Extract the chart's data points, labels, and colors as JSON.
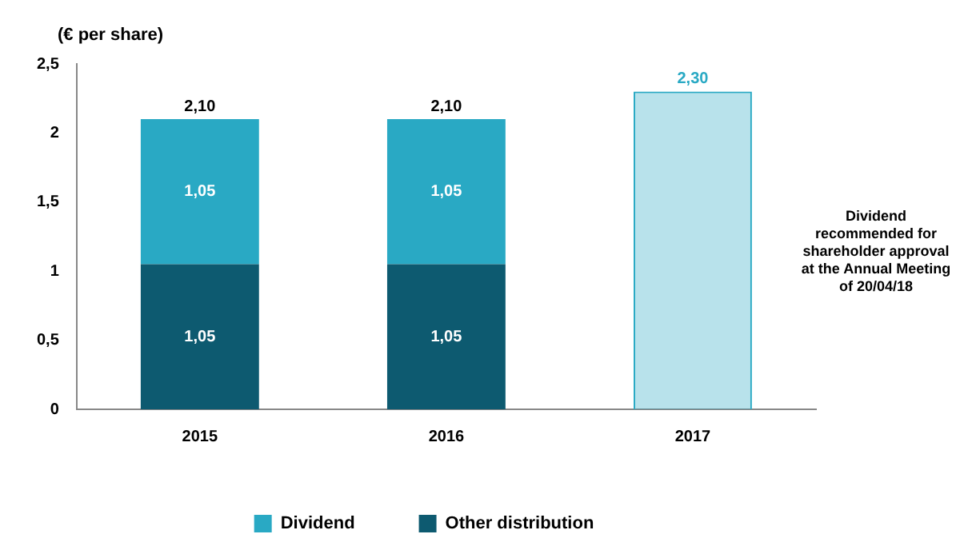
{
  "chart_data": {
    "type": "bar",
    "ylabel": "(€ per share)",
    "categories": [
      "2015",
      "2016",
      "2017"
    ],
    "stacked": true,
    "series": [
      {
        "name": "Other distribution",
        "color": "#0d5a70",
        "values": [
          1.05,
          1.05,
          null
        ],
        "value_labels": [
          "1,05",
          "1,05",
          null
        ]
      },
      {
        "name": "Dividend",
        "color": "#29a9c4",
        "values": [
          1.05,
          1.05,
          null
        ],
        "value_labels": [
          "1,05",
          "1,05",
          null
        ]
      },
      {
        "color": "#29a9c4",
        "values": [
          null,
          null,
          2.3
        ]
      }
    ],
    "totals": [
      "2,10",
      "2,10",
      "2,30"
    ],
    "ylim": [
      0,
      2.5
    ],
    "yticks": [
      0,
      {
        "value": 0.5,
        "label": "0,5"
      },
      1,
      {
        "value": 1.5,
        "label": "1,5"
      },
      2,
      {
        "value": 2.5,
        "label": "2,5"
      }
    ],
    "grid": false,
    "legend": "bottom",
    "annotations": [
      "Dividend recommended for shareholder approval at the Annual Meeting of 20/04/18"
    ]
  }
}
